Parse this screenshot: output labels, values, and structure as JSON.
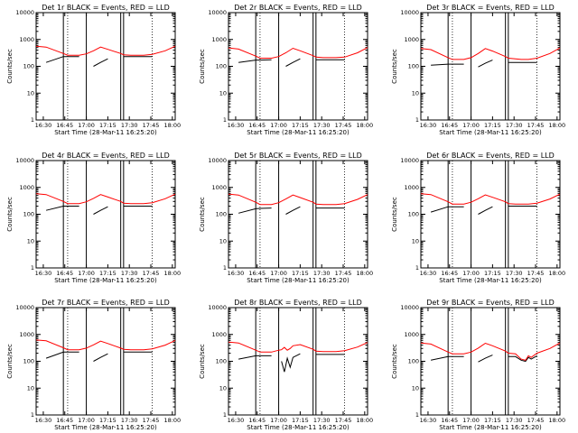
{
  "figure": {
    "background": "#ffffff",
    "axis_color": "#000000",
    "events_color": "#000000",
    "lld_color": "#ff0000"
  },
  "chart_data": [
    {
      "type": "line",
      "title": "Det 1r BLACK = Events, RED = LLD",
      "xlabel": "Start Time (28-Mar-11 16:25:20)",
      "ylabel": "Counts/sec",
      "x_ticks": [
        "16:30",
        "16:45",
        "17:00",
        "17:15",
        "17:30",
        "17:45",
        "18:00"
      ],
      "y_ticks": [
        "1",
        "10",
        "100",
        "1000",
        "10000"
      ],
      "yscale": "log",
      "ylim": [
        1,
        10000
      ],
      "xlim": [
        "16:25",
        "18:02"
      ],
      "vlines_solid": [
        "16:44",
        "17:00",
        "17:24",
        "17:26"
      ],
      "vlines_dotted": [
        "16:47",
        "17:46"
      ],
      "x": [
        "16:25",
        "16:32",
        "16:44",
        "16:47",
        "16:55",
        "17:00",
        "17:05",
        "17:10",
        "17:15",
        "17:24",
        "17:26",
        "17:31",
        "17:35",
        "17:40",
        "17:46",
        "17:55",
        "18:02"
      ],
      "series": [
        {
          "name": "Events",
          "color": "#000000",
          "values": [
            null,
            140,
            230,
            230,
            230,
            null,
            100,
            140,
            190,
            null,
            230,
            230,
            230,
            230,
            230,
            null,
            null
          ]
        },
        {
          "name": "LLD",
          "color": "#ff0000",
          "values": [
            560,
            520,
            300,
            260,
            260,
            290,
            380,
            520,
            430,
            300,
            270,
            260,
            260,
            260,
            280,
            380,
            560
          ]
        }
      ]
    },
    {
      "type": "line",
      "title": "Det 2r BLACK = Events, RED = LLD",
      "xlabel": "Start Time (28-Mar-11 16:25:20)",
      "ylabel": "Counts/sec",
      "x_ticks": [
        "16:30",
        "16:45",
        "17:00",
        "17:15",
        "17:30",
        "17:45",
        "18:00"
      ],
      "y_ticks": [
        "1",
        "10",
        "100",
        "1000",
        "10000"
      ],
      "yscale": "log",
      "ylim": [
        1,
        10000
      ],
      "xlim": [
        "16:25",
        "18:02"
      ],
      "vlines_solid": [
        "16:44",
        "17:00",
        "17:24",
        "17:26"
      ],
      "vlines_dotted": [
        "16:47",
        "17:46"
      ],
      "x": [
        "16:25",
        "16:32",
        "16:44",
        "16:47",
        "16:55",
        "17:00",
        "17:05",
        "17:10",
        "17:15",
        "17:24",
        "17:26",
        "17:31",
        "17:35",
        "17:40",
        "17:46",
        "17:55",
        "18:02"
      ],
      "series": [
        {
          "name": "Events",
          "color": "#000000",
          "values": [
            null,
            140,
            170,
            170,
            175,
            null,
            100,
            140,
            190,
            null,
            175,
            175,
            175,
            175,
            175,
            null,
            null
          ]
        },
        {
          "name": "LLD",
          "color": "#ff0000",
          "values": [
            480,
            440,
            240,
            200,
            200,
            230,
            320,
            470,
            380,
            250,
            220,
            210,
            210,
            210,
            220,
            320,
            500
          ]
        }
      ]
    },
    {
      "type": "line",
      "title": "Det 3r BLACK = Events, RED = LLD",
      "xlabel": "Start Time (28-Mar-11 16:25:20)",
      "ylabel": "Counts/sec",
      "x_ticks": [
        "16:30",
        "16:45",
        "17:00",
        "17:15",
        "17:30",
        "17:45",
        "18:00"
      ],
      "y_ticks": [
        "1",
        "10",
        "100",
        "1000",
        "10000"
      ],
      "yscale": "log",
      "ylim": [
        1,
        10000
      ],
      "xlim": [
        "16:25",
        "18:02"
      ],
      "vlines_solid": [
        "16:44",
        "17:00",
        "17:24",
        "17:26"
      ],
      "vlines_dotted": [
        "16:47",
        "17:46"
      ],
      "x": [
        "16:25",
        "16:32",
        "16:44",
        "16:47",
        "16:55",
        "17:00",
        "17:05",
        "17:10",
        "17:15",
        "17:24",
        "17:26",
        "17:31",
        "17:35",
        "17:40",
        "17:46",
        "17:55",
        "18:02"
      ],
      "series": [
        {
          "name": "Events",
          "color": "#000000",
          "values": [
            null,
            110,
            120,
            120,
            120,
            null,
            95,
            130,
            170,
            null,
            140,
            140,
            140,
            140,
            140,
            null,
            null
          ]
        },
        {
          "name": "LLD",
          "color": "#ff0000",
          "values": [
            460,
            420,
            210,
            180,
            180,
            210,
            300,
            460,
            370,
            230,
            200,
            190,
            180,
            180,
            200,
            300,
            480
          ]
        }
      ]
    },
    {
      "type": "line",
      "title": "Det 4r BLACK = Events, RED = LLD",
      "xlabel": "Start Time (28-Mar-11 16:25:20)",
      "ylabel": "Counts/sec",
      "x_ticks": [
        "16:30",
        "16:45",
        "17:00",
        "17:15",
        "17:30",
        "17:45",
        "18:00"
      ],
      "y_ticks": [
        "1",
        "10",
        "100",
        "1000",
        "10000"
      ],
      "yscale": "log",
      "ylim": [
        1,
        10000
      ],
      "xlim": [
        "16:25",
        "18:02"
      ],
      "vlines_solid": [
        "16:44",
        "17:00",
        "17:24",
        "17:26"
      ],
      "vlines_dotted": [
        "16:47",
        "17:46"
      ],
      "x": [
        "16:25",
        "16:32",
        "16:44",
        "16:47",
        "16:55",
        "17:00",
        "17:05",
        "17:10",
        "17:15",
        "17:24",
        "17:26",
        "17:31",
        "17:35",
        "17:40",
        "17:46",
        "17:55",
        "18:02"
      ],
      "series": [
        {
          "name": "Events",
          "color": "#000000",
          "values": [
            null,
            140,
            200,
            200,
            200,
            null,
            100,
            140,
            190,
            null,
            200,
            200,
            200,
            200,
            200,
            null,
            null
          ]
        },
        {
          "name": "LLD",
          "color": "#ff0000",
          "values": [
            580,
            540,
            300,
            250,
            250,
            290,
            390,
            540,
            440,
            300,
            260,
            250,
            250,
            250,
            270,
            380,
            560
          ]
        }
      ]
    },
    {
      "type": "line",
      "title": "Det 5r BLACK = Events, RED = LLD",
      "xlabel": "Start Time (28-Mar-11 16:25:20)",
      "ylabel": "Counts/sec",
      "x_ticks": [
        "16:30",
        "16:45",
        "17:00",
        "17:15",
        "17:30",
        "17:45",
        "18:00"
      ],
      "y_ticks": [
        "1",
        "10",
        "100",
        "1000",
        "10000"
      ],
      "yscale": "log",
      "ylim": [
        1,
        10000
      ],
      "xlim": [
        "16:25",
        "18:02"
      ],
      "vlines_solid": [
        "16:44",
        "17:00",
        "17:24",
        "17:26"
      ],
      "vlines_dotted": [
        "16:47",
        "17:46"
      ],
      "x": [
        "16:25",
        "16:32",
        "16:44",
        "16:47",
        "16:55",
        "17:00",
        "17:05",
        "17:10",
        "17:15",
        "17:24",
        "17:26",
        "17:31",
        "17:35",
        "17:40",
        "17:46",
        "17:55",
        "18:02"
      ],
      "series": [
        {
          "name": "Events",
          "color": "#000000",
          "values": [
            null,
            110,
            160,
            165,
            170,
            null,
            100,
            140,
            190,
            null,
            170,
            170,
            170,
            170,
            170,
            null,
            null
          ]
        },
        {
          "name": "LLD",
          "color": "#ff0000",
          "values": [
            560,
            520,
            280,
            230,
            230,
            270,
            370,
            520,
            420,
            280,
            240,
            230,
            230,
            230,
            250,
            360,
            540
          ]
        }
      ]
    },
    {
      "type": "line",
      "title": "Det 6r BLACK = Events, RED = LLD",
      "xlabel": "Start Time (28-Mar-11 16:25:20)",
      "ylabel": "Counts/sec",
      "x_ticks": [
        "16:30",
        "16:45",
        "17:00",
        "17:15",
        "17:30",
        "17:45",
        "18:00"
      ],
      "y_ticks": [
        "1",
        "10",
        "100",
        "1000",
        "10000"
      ],
      "yscale": "log",
      "ylim": [
        1,
        10000
      ],
      "xlim": [
        "16:25",
        "18:02"
      ],
      "vlines_solid": [
        "16:44",
        "17:00",
        "17:24",
        "17:26"
      ],
      "vlines_dotted": [
        "16:47",
        "17:46"
      ],
      "x": [
        "16:25",
        "16:32",
        "16:44",
        "16:47",
        "16:55",
        "17:00",
        "17:05",
        "17:10",
        "17:15",
        "17:24",
        "17:26",
        "17:31",
        "17:35",
        "17:40",
        "17:46",
        "17:55",
        "18:02"
      ],
      "series": [
        {
          "name": "Events",
          "color": "#000000",
          "values": [
            null,
            120,
            190,
            190,
            190,
            null,
            100,
            140,
            190,
            null,
            200,
            200,
            200,
            200,
            200,
            null,
            null
          ]
        },
        {
          "name": "LLD",
          "color": "#ff0000",
          "values": [
            580,
            540,
            290,
            240,
            240,
            280,
            380,
            530,
            430,
            290,
            250,
            240,
            240,
            240,
            260,
            370,
            560
          ]
        }
      ]
    },
    {
      "type": "line",
      "title": "Det 7r BLACK = Events, RED = LLD",
      "xlabel": "Start Time (28-Mar-11 16:25:20)",
      "ylabel": "Counts/sec",
      "x_ticks": [
        "16:30",
        "16:45",
        "17:00",
        "17:15",
        "17:30",
        "17:45",
        "18:00"
      ],
      "y_ticks": [
        "1",
        "10",
        "100",
        "1000",
        "10000"
      ],
      "yscale": "log",
      "ylim": [
        1,
        10000
      ],
      "xlim": [
        "16:25",
        "18:02"
      ],
      "vlines_solid": [
        "16:44",
        "17:00",
        "17:24",
        "17:26"
      ],
      "vlines_dotted": [
        "16:47",
        "17:46"
      ],
      "x": [
        "16:25",
        "16:32",
        "16:44",
        "16:47",
        "16:55",
        "17:00",
        "17:05",
        "17:10",
        "17:15",
        "17:24",
        "17:26",
        "17:31",
        "17:35",
        "17:40",
        "17:46",
        "17:55",
        "18:02"
      ],
      "series": [
        {
          "name": "Events",
          "color": "#000000",
          "values": [
            null,
            130,
            220,
            220,
            220,
            null,
            100,
            140,
            190,
            null,
            220,
            220,
            220,
            220,
            220,
            null,
            null
          ]
        },
        {
          "name": "LLD",
          "color": "#ff0000",
          "values": [
            620,
            580,
            320,
            270,
            270,
            310,
            410,
            560,
            460,
            310,
            280,
            270,
            270,
            270,
            290,
            400,
            600
          ]
        }
      ]
    },
    {
      "type": "line",
      "title": "Det 8r BLACK = Events, RED = LLD",
      "xlabel": "Start Time (28-Mar-11 16:25:20)",
      "ylabel": "Counts/sec",
      "x_ticks": [
        "16:30",
        "16:45",
        "17:00",
        "17:15",
        "17:30",
        "17:45",
        "18:00"
      ],
      "y_ticks": [
        "1",
        "10",
        "100",
        "1000",
        "10000"
      ],
      "yscale": "log",
      "ylim": [
        1,
        10000
      ],
      "xlim": [
        "16:25",
        "18:02"
      ],
      "vlines_solid": [
        "16:44",
        "17:00",
        "17:24",
        "17:26"
      ],
      "vlines_dotted": [
        "16:47",
        "17:46"
      ],
      "x": [
        "16:25",
        "16:32",
        "16:44",
        "16:47",
        "16:55",
        "17:00",
        "17:02",
        "17:04",
        "17:06",
        "17:08",
        "17:10",
        "17:15",
        "17:24",
        "17:26",
        "17:31",
        "17:35",
        "17:40",
        "17:46",
        "17:55",
        "18:02"
      ],
      "series": [
        {
          "name": "Events",
          "color": "#000000",
          "values": [
            null,
            120,
            160,
            160,
            160,
            null,
            100,
            40,
            130,
            60,
            140,
            190,
            null,
            180,
            180,
            180,
            180,
            180,
            null,
            null
          ]
        },
        {
          "name": "LLD",
          "color": "#ff0000",
          "values": [
            520,
            480,
            260,
            220,
            220,
            260,
            270,
            330,
            260,
            300,
            380,
            420,
            280,
            240,
            230,
            230,
            230,
            250,
            340,
            500
          ]
        }
      ]
    },
    {
      "type": "line",
      "title": "Det 9r BLACK = Events, RED = LLD",
      "xlabel": "Start Time (28-Mar-11 16:25:20)",
      "ylabel": "Counts/sec",
      "x_ticks": [
        "16:30",
        "16:45",
        "17:00",
        "17:15",
        "17:30",
        "17:45",
        "18:00"
      ],
      "y_ticks": [
        "1",
        "10",
        "100",
        "1000",
        "10000"
      ],
      "yscale": "log",
      "ylim": [
        1,
        10000
      ],
      "xlim": [
        "16:25",
        "18:02"
      ],
      "vlines_solid": [
        "16:44",
        "17:00",
        "17:24",
        "17:26"
      ],
      "vlines_dotted": [
        "16:47",
        "17:46"
      ],
      "x": [
        "16:25",
        "16:32",
        "16:44",
        "16:47",
        "16:55",
        "17:00",
        "17:05",
        "17:10",
        "17:15",
        "17:24",
        "17:26",
        "17:31",
        "17:35",
        "17:38",
        "17:40",
        "17:42",
        "17:46",
        "17:55",
        "18:02"
      ],
      "series": [
        {
          "name": "Events",
          "color": "#000000",
          "values": [
            null,
            110,
            150,
            150,
            150,
            null,
            95,
            130,
            170,
            null,
            150,
            150,
            110,
            100,
            140,
            120,
            160,
            null,
            null
          ]
        },
        {
          "name": "LLD",
          "color": "#ff0000",
          "values": [
            480,
            440,
            220,
            190,
            190,
            220,
            310,
            470,
            380,
            240,
            200,
            190,
            120,
            110,
            160,
            140,
            200,
            300,
            480
          ]
        }
      ]
    }
  ]
}
